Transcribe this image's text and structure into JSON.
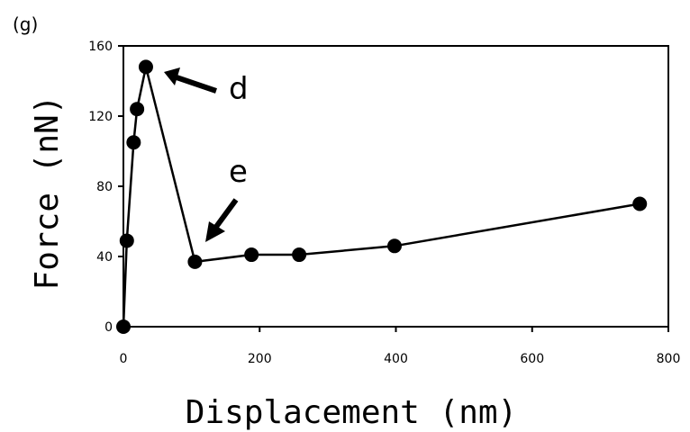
{
  "panel_label": "(g)",
  "chart_data": {
    "type": "line",
    "title": "",
    "xlabel": "Displacement (nm)",
    "ylabel": "Force (nN)",
    "xlim": [
      0,
      800
    ],
    "ylim": [
      0,
      160
    ],
    "xticks": [
      0,
      200,
      400,
      600,
      800
    ],
    "yticks": [
      0,
      40,
      80,
      120,
      160
    ],
    "grid": false,
    "series": [
      {
        "x": [
          0,
          5,
          15,
          20,
          33,
          105,
          188,
          258,
          398,
          758
        ],
        "y": [
          0,
          49,
          105,
          124,
          148,
          37,
          41,
          41,
          46,
          70
        ],
        "marker": "filled-circle",
        "color": "#000000"
      }
    ],
    "annotations": [
      {
        "text": "d",
        "x": 33,
        "y": 148
      },
      {
        "text": "e",
        "x": 105,
        "y": 37
      }
    ]
  }
}
